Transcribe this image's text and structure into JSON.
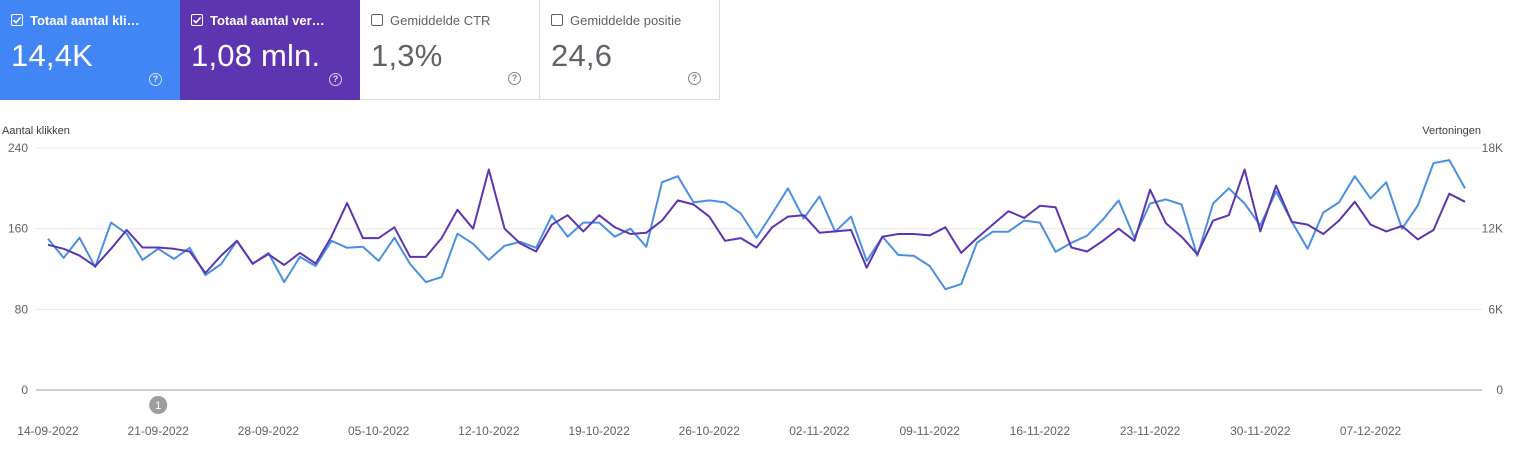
{
  "metrics": [
    {
      "label": "Totaal aantal klik…",
      "value": "14,4K",
      "checked": true,
      "color": "#4285f4"
    },
    {
      "label": "Totaal aantal vert…",
      "value": "1,08 mln.",
      "checked": true,
      "color": "#5e35b1"
    },
    {
      "label": "Gemiddelde CTR",
      "value": "1,3%",
      "checked": false,
      "color": "#ffffff"
    },
    {
      "label": "Gemiddelde positie",
      "value": "24,6",
      "checked": false,
      "color": "#ffffff"
    }
  ],
  "help_glyph": "?",
  "annotation": {
    "label": "1",
    "date_index": 7
  },
  "chart_data": {
    "type": "line",
    "left_axis_title": "Aantal klikken",
    "right_axis_title": "Vertoningen",
    "y_left_ticks": [
      "240",
      "160",
      "80",
      "0"
    ],
    "y_right_ticks": [
      "18K",
      "12K",
      "6K",
      "0"
    ],
    "ylim_left": [
      0,
      240
    ],
    "ylim_right": [
      0,
      18000
    ],
    "x_tick_labels": [
      "14-09-2022",
      "21-09-2022",
      "28-09-2022",
      "05-10-2022",
      "12-10-2022",
      "19-10-2022",
      "26-10-2022",
      "02-11-2022",
      "09-11-2022",
      "16-11-2022",
      "23-11-2022",
      "30-11-2022",
      "07-12-2022"
    ],
    "x_tick_every": 7,
    "grid": true,
    "series": [
      {
        "name": "Totaal aantal klikken",
        "axis": "left",
        "color": "#4a90e2",
        "values": [
          150,
          131,
          151,
          122,
          166,
          155,
          129,
          140,
          130,
          141,
          114,
          125,
          148,
          125,
          136,
          107,
          132,
          123,
          148,
          141,
          142,
          128,
          151,
          125,
          107,
          112,
          155,
          145,
          129,
          143,
          147,
          141,
          173,
          152,
          166,
          166,
          152,
          160,
          142,
          206,
          212,
          186,
          188,
          186,
          175,
          151,
          175,
          200,
          170,
          192,
          157,
          172,
          128,
          152,
          134,
          133,
          123,
          100,
          105,
          146,
          157,
          157,
          168,
          166,
          137,
          146,
          153,
          169,
          188,
          151,
          185,
          189,
          184,
          133,
          185,
          200,
          185,
          163,
          197,
          167,
          140,
          176,
          186,
          212,
          190,
          206,
          160,
          183,
          225,
          228,
          200
        ]
      },
      {
        "name": "Totaal aantal vertoningen",
        "axis": "right",
        "color": "#5e35b1",
        "values": [
          10800,
          10500,
          10000,
          9200,
          10500,
          11900,
          10600,
          10600,
          10500,
          10300,
          8700,
          10000,
          11100,
          9400,
          10100,
          9300,
          10200,
          9400,
          11400,
          13900,
          11300,
          11300,
          12100,
          9900,
          9900,
          11300,
          13400,
          12000,
          16400,
          12000,
          10900,
          10300,
          12300,
          13000,
          11800,
          13000,
          12100,
          11600,
          11700,
          12600,
          14100,
          13800,
          12900,
          11100,
          11300,
          10600,
          12100,
          12900,
          13000,
          11700,
          11800,
          11900,
          9100,
          11400,
          11600,
          11600,
          11500,
          12100,
          10200,
          11300,
          12300,
          13300,
          12800,
          13700,
          13600,
          10600,
          10300,
          11100,
          12000,
          11100,
          14900,
          12400,
          11400,
          10100,
          12600,
          13000,
          16400,
          11800,
          15200,
          12500,
          12300,
          11600,
          12600,
          14000,
          12300,
          11800,
          12200,
          11200,
          11900,
          14600,
          14000
        ]
      }
    ]
  }
}
